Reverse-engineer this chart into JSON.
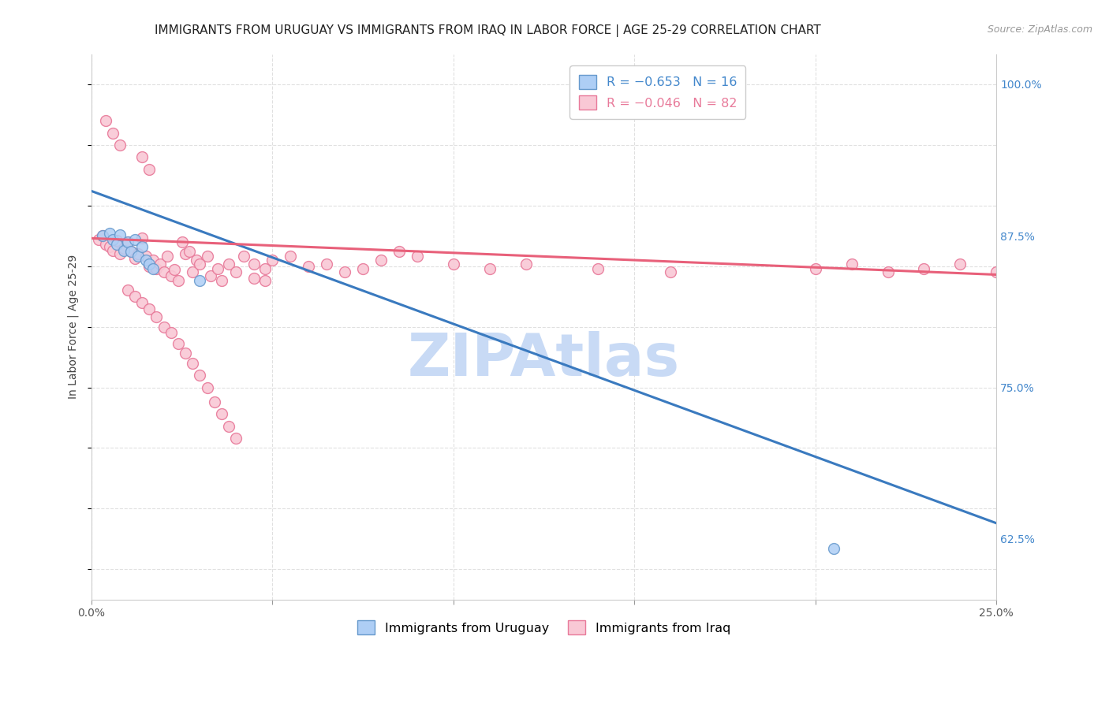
{
  "title": "IMMIGRANTS FROM URUGUAY VS IMMIGRANTS FROM IRAQ IN LABOR FORCE | AGE 25-29 CORRELATION CHART",
  "source": "Source: ZipAtlas.com",
  "ylabel": "In Labor Force | Age 25-29",
  "xmin": 0.0,
  "xmax": 0.25,
  "ymin": 0.575,
  "ymax": 1.025,
  "x_ticks": [
    0.0,
    0.05,
    0.1,
    0.15,
    0.2,
    0.25
  ],
  "x_tick_labels": [
    "0.0%",
    "",
    "",
    "",
    "",
    "25.0%"
  ],
  "y_ticks": [
    0.625,
    0.75,
    0.875,
    1.0
  ],
  "y_tick_labels": [
    "62.5%",
    "75.0%",
    "87.5%",
    "100.0%"
  ],
  "watermark": "ZIPAtlas",
  "watermark_color": "#c8daf5",
  "uruguay_color": "#aecef5",
  "iraq_color": "#f9c8d5",
  "uruguay_edge_color": "#6699cc",
  "iraq_edge_color": "#e87a9a",
  "uruguay_trend_color": "#3a7abf",
  "iraq_trend_color": "#e8607a",
  "marker_size": 100,
  "uruguay_trend_x": [
    0.0,
    0.25
  ],
  "uruguay_trend_y": [
    0.912,
    0.638
  ],
  "iraq_trend_x": [
    0.0,
    0.25
  ],
  "iraq_trend_y": [
    0.873,
    0.843
  ],
  "bg_color": "#ffffff",
  "grid_color": "#e0e0e0",
  "title_fontsize": 11,
  "axis_label_fontsize": 10,
  "tick_fontsize": 10,
  "uruguay_points_x": [
    0.003,
    0.005,
    0.006,
    0.007,
    0.008,
    0.009,
    0.01,
    0.011,
    0.012,
    0.013,
    0.014,
    0.015,
    0.016,
    0.017,
    0.03,
    0.205
  ],
  "uruguay_points_y": [
    0.875,
    0.877,
    0.872,
    0.868,
    0.876,
    0.863,
    0.87,
    0.862,
    0.872,
    0.858,
    0.866,
    0.855,
    0.852,
    0.848,
    0.838,
    0.617
  ],
  "iraq_points_x": [
    0.002,
    0.003,
    0.004,
    0.005,
    0.006,
    0.007,
    0.008,
    0.009,
    0.01,
    0.011,
    0.012,
    0.013,
    0.014,
    0.015,
    0.016,
    0.017,
    0.018,
    0.019,
    0.02,
    0.021,
    0.022,
    0.023,
    0.024,
    0.025,
    0.026,
    0.027,
    0.028,
    0.029,
    0.03,
    0.032,
    0.033,
    0.035,
    0.036,
    0.038,
    0.04,
    0.042,
    0.045,
    0.048,
    0.05,
    0.055,
    0.06,
    0.065,
    0.07,
    0.075,
    0.08,
    0.085,
    0.09,
    0.1,
    0.11,
    0.12,
    0.14,
    0.16,
    0.2,
    0.21,
    0.22,
    0.23,
    0.24,
    0.25,
    0.045,
    0.048,
    0.01,
    0.012,
    0.014,
    0.016,
    0.018,
    0.02,
    0.022,
    0.024,
    0.026,
    0.028,
    0.03,
    0.032,
    0.034,
    0.036,
    0.038,
    0.04,
    0.008,
    0.006,
    0.004,
    0.014,
    0.016
  ],
  "iraq_points_y": [
    0.872,
    0.875,
    0.868,
    0.866,
    0.863,
    0.871,
    0.86,
    0.865,
    0.87,
    0.862,
    0.856,
    0.86,
    0.873,
    0.858,
    0.85,
    0.855,
    0.848,
    0.852,
    0.845,
    0.858,
    0.842,
    0.847,
    0.838,
    0.87,
    0.86,
    0.862,
    0.845,
    0.855,
    0.852,
    0.858,
    0.842,
    0.848,
    0.838,
    0.852,
    0.845,
    0.858,
    0.852,
    0.848,
    0.855,
    0.858,
    0.85,
    0.852,
    0.845,
    0.848,
    0.855,
    0.862,
    0.858,
    0.852,
    0.848,
    0.852,
    0.848,
    0.845,
    0.848,
    0.852,
    0.845,
    0.848,
    0.852,
    0.845,
    0.84,
    0.838,
    0.83,
    0.825,
    0.82,
    0.815,
    0.808,
    0.8,
    0.795,
    0.786,
    0.778,
    0.77,
    0.76,
    0.75,
    0.738,
    0.728,
    0.718,
    0.708,
    0.95,
    0.96,
    0.97,
    0.94,
    0.93
  ]
}
